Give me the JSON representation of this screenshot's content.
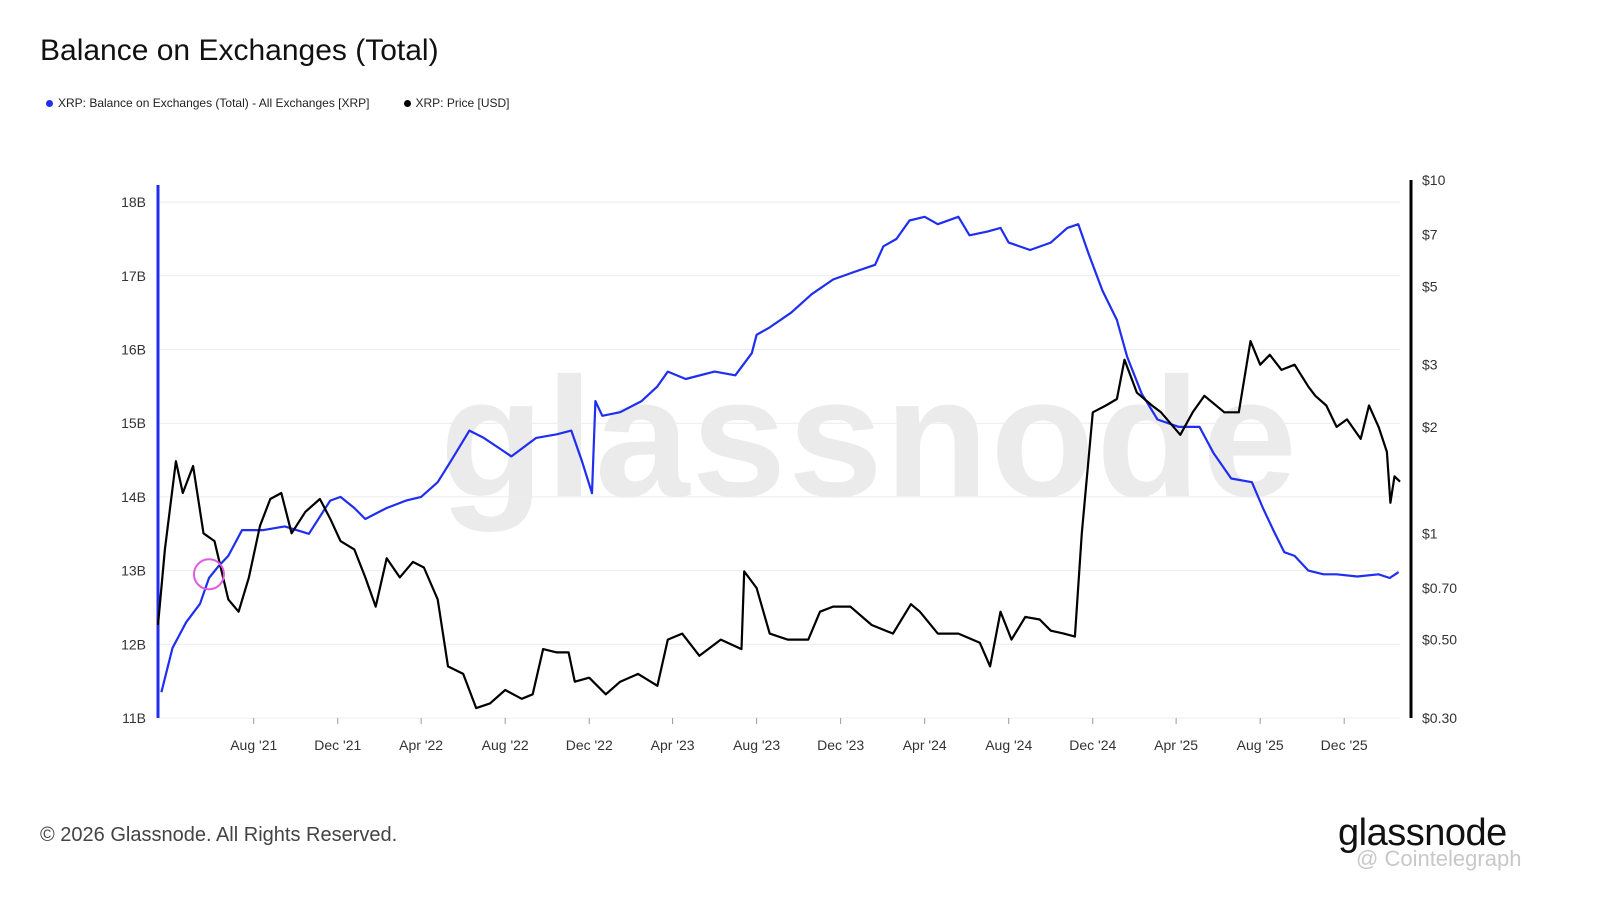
{
  "page": {
    "title": "Balance on Exchanges (Total)",
    "copyright": "© 2026 Glassnode. All Rights Reserved.",
    "logo": "glassnode",
    "credit": "@ Cointelegraph",
    "watermark": "glassnode"
  },
  "colors": {
    "balance": "#1f2ef0",
    "price": "#000000",
    "grid": "#ececec",
    "marker": "#e05be0"
  },
  "chart_data": {
    "type": "line",
    "title": "Balance on Exchanges (Total)",
    "x_tick_labels": [
      "Aug '21",
      "Dec '21",
      "Apr '22",
      "Aug '22",
      "Dec '22",
      "Apr '23",
      "Aug '23",
      "Dec '23",
      "Apr '24",
      "Aug '24",
      "Dec '24",
      "Apr '25",
      "Aug '25",
      "Dec '25"
    ],
    "x_tick_dates": [
      "2021-08-01",
      "2021-12-01",
      "2022-04-01",
      "2022-08-01",
      "2022-12-01",
      "2023-04-01",
      "2023-08-01",
      "2023-12-01",
      "2024-04-01",
      "2024-08-01",
      "2024-12-01",
      "2025-04-01",
      "2025-08-01",
      "2025-12-01"
    ],
    "x_range": [
      "2021-03-15",
      "2026-02-20"
    ],
    "y_left": {
      "ticks": [
        "11B",
        "12B",
        "13B",
        "14B",
        "15B",
        "16B",
        "17B",
        "18B"
      ],
      "tick_values": [
        11,
        12,
        13,
        14,
        15,
        16,
        17,
        18
      ],
      "range": [
        11,
        18.3
      ],
      "unit": "billion XRP"
    },
    "y_right": {
      "scale": "log",
      "ticks": [
        "$0.30",
        "$0.50",
        "$0.70",
        "$1",
        "$2",
        "$3",
        "$5",
        "$7",
        "$10"
      ],
      "tick_values": [
        0.3,
        0.5,
        0.7,
        1,
        2,
        3,
        5,
        7,
        10
      ],
      "range": [
        0.3,
        10
      ]
    },
    "grid": true,
    "legend_position": "top-left",
    "series": [
      {
        "name": "XRP: Balance on Exchanges (Total) - All Exchanges [XRP]",
        "axis": "left",
        "color": "#1f2ef0",
        "points": [
          [
            "2021-03-20",
            11.35
          ],
          [
            "2021-04-05",
            11.95
          ],
          [
            "2021-04-25",
            12.3
          ],
          [
            "2021-05-15",
            12.55
          ],
          [
            "2021-05-28",
            12.9
          ],
          [
            "2021-06-10",
            13.05
          ],
          [
            "2021-06-25",
            13.2
          ],
          [
            "2021-07-15",
            13.55
          ],
          [
            "2021-08-15",
            13.55
          ],
          [
            "2021-09-15",
            13.6
          ],
          [
            "2021-10-20",
            13.5
          ],
          [
            "2021-11-20",
            13.95
          ],
          [
            "2021-12-05",
            14.0
          ],
          [
            "2021-12-25",
            13.85
          ],
          [
            "2022-01-10",
            13.7
          ],
          [
            "2022-02-10",
            13.85
          ],
          [
            "2022-03-10",
            13.95
          ],
          [
            "2022-04-01",
            14.0
          ],
          [
            "2022-04-25",
            14.2
          ],
          [
            "2022-05-15",
            14.5
          ],
          [
            "2022-06-10",
            14.9
          ],
          [
            "2022-07-01",
            14.8
          ],
          [
            "2022-07-25",
            14.65
          ],
          [
            "2022-08-10",
            14.55
          ],
          [
            "2022-09-15",
            14.8
          ],
          [
            "2022-10-15",
            14.85
          ],
          [
            "2022-11-05",
            14.9
          ],
          [
            "2022-11-20",
            14.5
          ],
          [
            "2022-12-05",
            14.05
          ],
          [
            "2022-12-10",
            15.3
          ],
          [
            "2022-12-20",
            15.1
          ],
          [
            "2023-01-15",
            15.15
          ],
          [
            "2023-02-15",
            15.3
          ],
          [
            "2023-03-10",
            15.5
          ],
          [
            "2023-03-25",
            15.7
          ],
          [
            "2023-04-20",
            15.6
          ],
          [
            "2023-06-01",
            15.7
          ],
          [
            "2023-07-01",
            15.65
          ],
          [
            "2023-07-25",
            15.95
          ],
          [
            "2023-08-01",
            16.2
          ],
          [
            "2023-08-20",
            16.3
          ],
          [
            "2023-09-20",
            16.5
          ],
          [
            "2023-10-20",
            16.75
          ],
          [
            "2023-11-20",
            16.95
          ],
          [
            "2023-12-20",
            17.05
          ],
          [
            "2024-01-20",
            17.15
          ],
          [
            "2024-02-01",
            17.4
          ],
          [
            "2024-02-20",
            17.5
          ],
          [
            "2024-03-10",
            17.75
          ],
          [
            "2024-04-01",
            17.8
          ],
          [
            "2024-04-20",
            17.7
          ],
          [
            "2024-05-20",
            17.8
          ],
          [
            "2024-06-05",
            17.55
          ],
          [
            "2024-07-01",
            17.6
          ],
          [
            "2024-07-20",
            17.65
          ],
          [
            "2024-08-01",
            17.45
          ],
          [
            "2024-09-01",
            17.35
          ],
          [
            "2024-10-01",
            17.45
          ],
          [
            "2024-10-25",
            17.65
          ],
          [
            "2024-11-10",
            17.7
          ],
          [
            "2024-11-25",
            17.3
          ],
          [
            "2024-12-15",
            16.8
          ],
          [
            "2025-01-05",
            16.4
          ],
          [
            "2025-01-20",
            15.9
          ],
          [
            "2025-02-10",
            15.4
          ],
          [
            "2025-03-05",
            15.05
          ],
          [
            "2025-04-05",
            14.95
          ],
          [
            "2025-05-05",
            14.95
          ],
          [
            "2025-05-25",
            14.6
          ],
          [
            "2025-06-20",
            14.25
          ],
          [
            "2025-07-20",
            14.2
          ],
          [
            "2025-08-05",
            13.85
          ],
          [
            "2025-08-20",
            13.55
          ],
          [
            "2025-09-05",
            13.25
          ],
          [
            "2025-09-20",
            13.2
          ],
          [
            "2025-10-10",
            13.0
          ],
          [
            "2025-11-01",
            12.95
          ],
          [
            "2025-11-20",
            12.95
          ],
          [
            "2025-12-20",
            12.92
          ],
          [
            "2026-01-20",
            12.95
          ],
          [
            "2026-02-05",
            12.9
          ],
          [
            "2026-02-18",
            12.98
          ]
        ]
      },
      {
        "name": "XRP: Price [USD]",
        "axis": "right",
        "color": "#000000",
        "points": [
          [
            "2021-03-15",
            0.55
          ],
          [
            "2021-03-25",
            0.9
          ],
          [
            "2021-04-10",
            1.6
          ],
          [
            "2021-04-20",
            1.3
          ],
          [
            "2021-05-05",
            1.55
          ],
          [
            "2021-05-20",
            1.0
          ],
          [
            "2021-06-05",
            0.95
          ],
          [
            "2021-06-25",
            0.65
          ],
          [
            "2021-07-10",
            0.6
          ],
          [
            "2021-07-25",
            0.75
          ],
          [
            "2021-08-10",
            1.05
          ],
          [
            "2021-08-25",
            1.25
          ],
          [
            "2021-09-10",
            1.3
          ],
          [
            "2021-09-25",
            1.0
          ],
          [
            "2021-10-15",
            1.15
          ],
          [
            "2021-11-05",
            1.25
          ],
          [
            "2021-11-20",
            1.1
          ],
          [
            "2021-12-05",
            0.95
          ],
          [
            "2021-12-25",
            0.9
          ],
          [
            "2022-01-10",
            0.75
          ],
          [
            "2022-01-25",
            0.62
          ],
          [
            "2022-02-10",
            0.85
          ],
          [
            "2022-03-01",
            0.75
          ],
          [
            "2022-03-20",
            0.83
          ],
          [
            "2022-04-05",
            0.8
          ],
          [
            "2022-04-25",
            0.65
          ],
          [
            "2022-05-10",
            0.42
          ],
          [
            "2022-06-01",
            0.4
          ],
          [
            "2022-06-20",
            0.32
          ],
          [
            "2022-07-10",
            0.33
          ],
          [
            "2022-08-01",
            0.36
          ],
          [
            "2022-08-25",
            0.34
          ],
          [
            "2022-09-10",
            0.35
          ],
          [
            "2022-09-25",
            0.47
          ],
          [
            "2022-10-15",
            0.46
          ],
          [
            "2022-11-01",
            0.46
          ],
          [
            "2022-11-10",
            0.38
          ],
          [
            "2022-12-01",
            0.39
          ],
          [
            "2022-12-25",
            0.35
          ],
          [
            "2023-01-15",
            0.38
          ],
          [
            "2023-02-10",
            0.4
          ],
          [
            "2023-03-10",
            0.37
          ],
          [
            "2023-03-25",
            0.5
          ],
          [
            "2023-04-15",
            0.52
          ],
          [
            "2023-05-10",
            0.45
          ],
          [
            "2023-06-10",
            0.5
          ],
          [
            "2023-07-10",
            0.47
          ],
          [
            "2023-07-14",
            0.78
          ],
          [
            "2023-08-01",
            0.7
          ],
          [
            "2023-08-20",
            0.52
          ],
          [
            "2023-09-15",
            0.5
          ],
          [
            "2023-10-15",
            0.5
          ],
          [
            "2023-11-01",
            0.6
          ],
          [
            "2023-11-20",
            0.62
          ],
          [
            "2023-12-15",
            0.62
          ],
          [
            "2024-01-15",
            0.55
          ],
          [
            "2024-02-15",
            0.52
          ],
          [
            "2024-03-12",
            0.63
          ],
          [
            "2024-03-25",
            0.6
          ],
          [
            "2024-04-20",
            0.52
          ],
          [
            "2024-05-20",
            0.52
          ],
          [
            "2024-06-20",
            0.49
          ],
          [
            "2024-07-05",
            0.42
          ],
          [
            "2024-07-20",
            0.6
          ],
          [
            "2024-08-05",
            0.5
          ],
          [
            "2024-08-25",
            0.58
          ],
          [
            "2024-09-15",
            0.57
          ],
          [
            "2024-10-01",
            0.53
          ],
          [
            "2024-10-20",
            0.52
          ],
          [
            "2024-11-05",
            0.51
          ],
          [
            "2024-11-15",
            1.0
          ],
          [
            "2024-12-01",
            2.2
          ],
          [
            "2024-12-20",
            2.3
          ],
          [
            "2025-01-05",
            2.4
          ],
          [
            "2025-01-16",
            3.1
          ],
          [
            "2025-02-03",
            2.5
          ],
          [
            "2025-02-25",
            2.3
          ],
          [
            "2025-03-10",
            2.2
          ],
          [
            "2025-04-07",
            1.9
          ],
          [
            "2025-04-25",
            2.2
          ],
          [
            "2025-05-12",
            2.45
          ],
          [
            "2025-06-10",
            2.2
          ],
          [
            "2025-07-01",
            2.2
          ],
          [
            "2025-07-18",
            3.5
          ],
          [
            "2025-08-01",
            3.0
          ],
          [
            "2025-08-15",
            3.2
          ],
          [
            "2025-09-01",
            2.9
          ],
          [
            "2025-09-20",
            3.0
          ],
          [
            "2025-10-10",
            2.6
          ],
          [
            "2025-10-20",
            2.45
          ],
          [
            "2025-11-05",
            2.3
          ],
          [
            "2025-11-20",
            2.0
          ],
          [
            "2025-12-05",
            2.1
          ],
          [
            "2025-12-25",
            1.85
          ],
          [
            "2026-01-06",
            2.3
          ],
          [
            "2026-01-20",
            2.0
          ],
          [
            "2026-02-01",
            1.7
          ],
          [
            "2026-02-06",
            1.22
          ],
          [
            "2026-02-12",
            1.45
          ],
          [
            "2026-02-20",
            1.4
          ]
        ]
      }
    ],
    "annotation": {
      "type": "circle",
      "date": "2021-05-28",
      "value": 12.95,
      "axis": "left"
    }
  }
}
